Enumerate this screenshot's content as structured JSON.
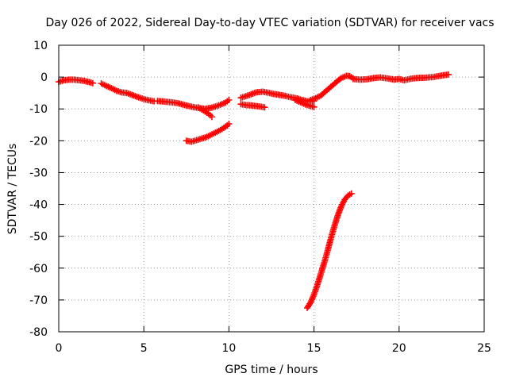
{
  "chart_data": {
    "type": "scatter",
    "title": "Day 026 of 2022, Sidereal Day-to-day VTEC variation (SDTVAR) for receiver vacs",
    "xlabel": "GPS time / hours",
    "ylabel": "SDTVAR / TECUs",
    "xlim": [
      0,
      25
    ],
    "ylim": [
      -80,
      10
    ],
    "xticks": [
      0,
      5,
      10,
      15,
      20,
      25
    ],
    "yticks": [
      10,
      0,
      -10,
      -20,
      -30,
      -40,
      -50,
      -60,
      -70,
      -80
    ],
    "xtick_labels": [
      "0",
      "5",
      "10",
      "15",
      "20",
      "25"
    ],
    "ytick_labels": [
      "10",
      "0",
      "-10",
      "-20",
      "-30",
      "-40",
      "-50",
      "-60",
      "-70",
      "-80"
    ],
    "grid": true,
    "marker": "+",
    "color": "#ff0000",
    "series": [
      {
        "name": "trace-1",
        "x": [
          0.0,
          0.3,
          0.6,
          0.9,
          1.2,
          1.5,
          1.8,
          2.0
        ],
        "y": [
          -1.5,
          -1.0,
          -0.8,
          -0.8,
          -1.0,
          -1.2,
          -1.6,
          -1.9
        ]
      },
      {
        "name": "trace-2",
        "x": [
          2.5,
          2.8,
          3.1,
          3.4,
          3.7,
          4.0,
          4.3,
          4.6,
          5.0,
          5.3,
          5.6
        ],
        "y": [
          -2.0,
          -2.8,
          -3.5,
          -4.3,
          -4.8,
          -5.0,
          -5.6,
          -6.2,
          -6.9,
          -7.3,
          -7.6
        ]
      },
      {
        "name": "trace-3",
        "x": [
          5.8,
          6.2,
          6.6,
          7.0,
          7.4,
          7.8,
          8.2,
          8.6,
          9.0,
          9.4,
          9.8,
          10.0
        ],
        "y": [
          -7.5,
          -7.7,
          -7.9,
          -8.2,
          -8.8,
          -9.3,
          -9.7,
          -10.0,
          -9.6,
          -8.9,
          -8.0,
          -7.2
        ]
      },
      {
        "name": "trace-4",
        "x": [
          8.2,
          8.5,
          8.8,
          9.0
        ],
        "y": [
          -9.5,
          -10.5,
          -11.5,
          -12.5
        ]
      },
      {
        "name": "trace-5",
        "x": [
          7.5,
          7.8,
          8.1,
          8.4,
          8.7,
          9.0,
          9.3,
          9.6,
          9.9,
          10.0
        ],
        "y": [
          -20.0,
          -20.3,
          -19.8,
          -19.3,
          -18.8,
          -18.0,
          -17.2,
          -16.3,
          -15.2,
          -14.7
        ]
      },
      {
        "name": "trace-6",
        "x": [
          10.7,
          11.0,
          11.3,
          11.6,
          12.0,
          12.3,
          12.6,
          13.0,
          13.3,
          13.6,
          14.0,
          14.3,
          14.6,
          15.0
        ],
        "y": [
          -6.5,
          -6.0,
          -5.4,
          -4.8,
          -4.6,
          -4.9,
          -5.3,
          -5.6,
          -5.9,
          -6.3,
          -6.7,
          -7.2,
          -7.6,
          -7.5
        ]
      },
      {
        "name": "trace-7",
        "x": [
          10.7,
          11.0,
          11.3,
          11.6,
          11.9,
          12.1
        ],
        "y": [
          -8.5,
          -8.8,
          -8.9,
          -9.1,
          -9.3,
          -9.5
        ]
      },
      {
        "name": "trace-8",
        "x": [
          13.9,
          14.2,
          14.5,
          14.8,
          15.0
        ],
        "y": [
          -7.2,
          -7.9,
          -8.6,
          -9.1,
          -9.4
        ]
      },
      {
        "name": "trace-9",
        "x": [
          14.8,
          15.1,
          15.4,
          15.7,
          16.0,
          16.3,
          16.6,
          16.9,
          17.1,
          17.3
        ],
        "y": [
          -7.2,
          -6.6,
          -5.8,
          -4.4,
          -3.0,
          -1.6,
          -0.3,
          0.4,
          0.3,
          -0.4
        ]
      },
      {
        "name": "trace-10",
        "x": [
          17.3,
          17.7,
          18.1,
          18.5,
          18.9,
          19.3,
          19.7,
          20.0,
          20.3,
          20.7,
          21.0,
          21.5,
          22.0,
          22.5,
          22.9
        ],
        "y": [
          -0.6,
          -0.8,
          -0.7,
          -0.3,
          -0.1,
          -0.4,
          -0.8,
          -0.6,
          -1.0,
          -0.5,
          -0.3,
          -0.2,
          0.0,
          0.5,
          0.8
        ]
      },
      {
        "name": "trace-11",
        "x": [
          14.6,
          14.8,
          15.0,
          15.2,
          15.4,
          15.6,
          15.8,
          16.0,
          16.2,
          16.4,
          16.6,
          16.8,
          17.0,
          17.2
        ],
        "y": [
          -72.5,
          -70.8,
          -68.3,
          -65.2,
          -61.8,
          -58.3,
          -54.5,
          -50.5,
          -46.8,
          -43.4,
          -40.6,
          -38.5,
          -37.2,
          -36.6
        ]
      }
    ]
  }
}
